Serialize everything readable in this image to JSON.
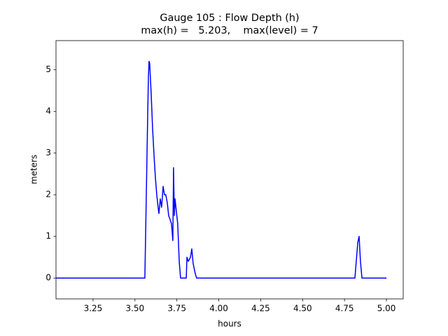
{
  "chart_data": {
    "type": "line",
    "title": "Gauge 105 : Flow Depth (h)",
    "subtitle": "max(h) =   5.203,    max(level) = 7",
    "xlabel": "hours",
    "ylabel": "meters",
    "xlim": [
      3.029,
      5.1
    ],
    "ylim": [
      -0.5,
      5.7
    ],
    "xticks": [
      3.25,
      {
        "value": 3.5,
        "label": "3.50"
      },
      3.75,
      {
        "value": 4.0,
        "label": "4.00"
      },
      4.25,
      {
        "value": 4.5,
        "label": "4.50"
      },
      4.75,
      {
        "value": 5.0,
        "label": "5.00"
      }
    ],
    "yticks": [
      0,
      1,
      2,
      3,
      4,
      5
    ],
    "grid": false,
    "series": [
      {
        "color": "#0000ff",
        "x": [
          3.03,
          3.559,
          3.563,
          3.572,
          3.58,
          3.584,
          3.588,
          3.597,
          3.605,
          3.613,
          3.622,
          3.63,
          3.638,
          3.643,
          3.651,
          3.659,
          3.668,
          3.676,
          3.684,
          3.693,
          3.701,
          3.71,
          3.718,
          3.726,
          3.73,
          3.735,
          3.739,
          3.747,
          3.755,
          3.764,
          3.772,
          3.806,
          3.81,
          3.818,
          3.831,
          3.839,
          3.847,
          3.86,
          3.868,
          4.812,
          4.82,
          4.829,
          4.837,
          4.845,
          4.854,
          5.0
        ],
        "values": [
          0,
          0,
          0.9,
          3.0,
          4.8,
          5.203,
          5.15,
          4.4,
          3.6,
          3.0,
          2.4,
          2.0,
          1.7,
          1.55,
          1.9,
          1.7,
          2.2,
          2.0,
          2.0,
          1.8,
          1.5,
          1.4,
          1.3,
          0.9,
          2.65,
          1.5,
          1.9,
          1.6,
          1.3,
          0.4,
          0,
          0,
          0.5,
          0.4,
          0.5,
          0.7,
          0.35,
          0.1,
          0,
          0,
          0.4,
          0.85,
          1.0,
          0.4,
          0,
          0
        ]
      }
    ]
  }
}
